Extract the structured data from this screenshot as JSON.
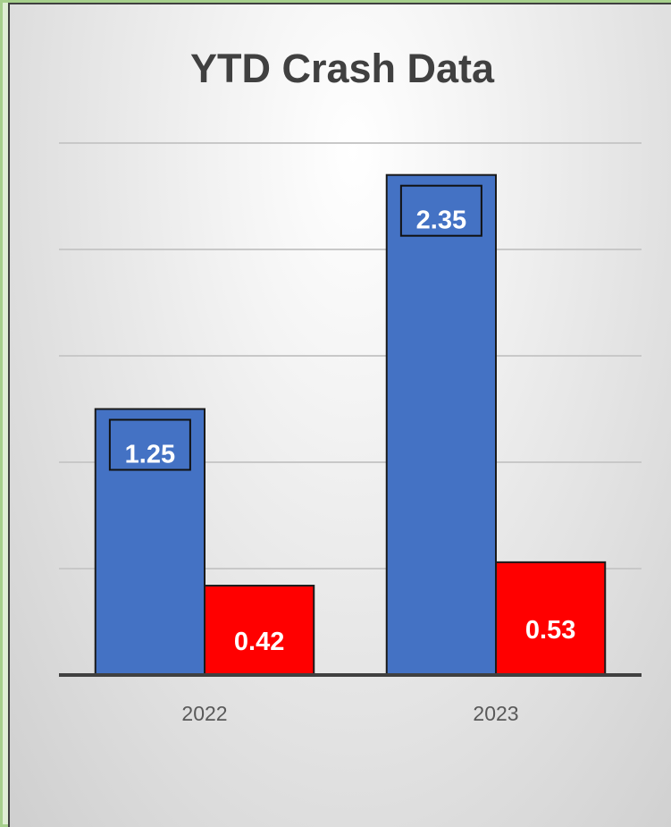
{
  "chart_data": {
    "type": "bar",
    "title": "YTD Crash Data",
    "categories": [
      "2022",
      "2023"
    ],
    "series": [
      {
        "values": [
          1.25,
          2.35
        ],
        "color": "#4472c4"
      },
      {
        "values": [
          0.42,
          0.53
        ],
        "color": "#ff0000"
      }
    ],
    "data_labels": [
      [
        "1.25",
        "2.35"
      ],
      [
        "0.42",
        "0.53"
      ]
    ],
    "ylim": [
      0,
      2.5
    ],
    "gridline_step": 0.5,
    "grid": true,
    "legend": "none",
    "xlabel": "",
    "ylabel": ""
  }
}
